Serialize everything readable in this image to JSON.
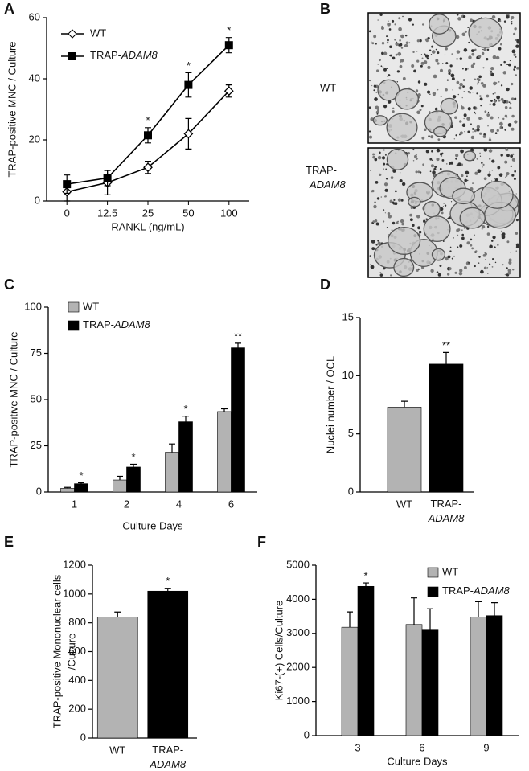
{
  "chart_data": [
    {
      "type": "line",
      "panel": "A",
      "xlabel": "RANKL (ng/mL)",
      "ylabel": "TRAP-positive MNC / Culture",
      "categories": [
        "0",
        "12.5",
        "25",
        "50",
        "100"
      ],
      "ylim": [
        0,
        60
      ],
      "yticks": [
        0,
        20,
        40,
        60
      ],
      "series": [
        {
          "name": "WT",
          "color": "#ffffff",
          "marker": "diamond",
          "values": [
            3,
            6,
            11,
            22,
            36
          ],
          "errors": [
            3,
            4,
            2,
            5,
            2
          ],
          "significance": [
            null,
            null,
            null,
            null,
            null
          ]
        },
        {
          "name": "TRAP-ADAM8",
          "color": "#000000",
          "marker": "square",
          "values": [
            5.5,
            7.5,
            21.5,
            38,
            51
          ],
          "errors": [
            3,
            2.5,
            2.5,
            4,
            2.5
          ],
          "significance": [
            null,
            null,
            "*",
            "*",
            "*"
          ]
        }
      ]
    },
    {
      "type": "bar",
      "panel": "C",
      "xlabel": "Culture Days",
      "ylabel": "TRAP-positive MNC / Culture",
      "categories": [
        "1",
        "2",
        "4",
        "6"
      ],
      "ylim": [
        0,
        100
      ],
      "yticks": [
        0,
        25,
        50,
        75,
        100
      ],
      "series": [
        {
          "name": "WT",
          "color": "#b3b3b3",
          "values": [
            2,
            6.5,
            21.5,
            43.5
          ],
          "errors": [
            0.5,
            2,
            4.5,
            1.5
          ],
          "significance": [
            null,
            null,
            null,
            null
          ]
        },
        {
          "name": "TRAP-ADAM8",
          "color": "#000000",
          "values": [
            4.5,
            13.5,
            38,
            78
          ],
          "errors": [
            0.5,
            1.5,
            3,
            2.5
          ],
          "significance": [
            "*",
            "*",
            "*",
            "**"
          ]
        }
      ]
    },
    {
      "type": "bar",
      "panel": "D",
      "ylabel": "Nuclei number / OCL",
      "categories": [
        "WT",
        "TRAP-ADAM8"
      ],
      "ylim": [
        0,
        15
      ],
      "yticks": [
        0,
        5,
        10,
        15
      ],
      "values": [
        7.3,
        11
      ],
      "errors": [
        0.5,
        1
      ],
      "colors": [
        "#b3b3b3",
        "#000000"
      ],
      "significance": [
        null,
        "**"
      ]
    },
    {
      "type": "bar",
      "panel": "E",
      "ylabel": [
        "TRAP-positive Mononuclear cells",
        "/Culture"
      ],
      "categories": [
        "WT",
        "TRAP-ADAM8"
      ],
      "ylim": [
        0,
        1200
      ],
      "yticks": [
        0,
        200,
        400,
        600,
        800,
        1000,
        1200
      ],
      "values": [
        840,
        1020
      ],
      "errors": [
        35,
        20
      ],
      "colors": [
        "#b3b3b3",
        "#000000"
      ],
      "significance": [
        null,
        "*"
      ]
    },
    {
      "type": "bar",
      "panel": "F",
      "xlabel": "Culture Days",
      "ylabel": "Ki67-(+) Cells/Culture",
      "categories": [
        "3",
        "6",
        "9"
      ],
      "ylim": [
        0,
        5000
      ],
      "yticks": [
        0,
        1000,
        2000,
        3000,
        4000,
        5000
      ],
      "series": [
        {
          "name": "WT",
          "color": "#b3b3b3",
          "values": [
            3180,
            3260,
            3480
          ],
          "errors": [
            450,
            780,
            450
          ],
          "significance": [
            null,
            null,
            null
          ]
        },
        {
          "name": "TRAP-ADAM8",
          "color": "#000000",
          "values": [
            4380,
            3120,
            3520
          ],
          "errors": [
            100,
            600,
            380
          ],
          "significance": [
            "*",
            null,
            null
          ]
        }
      ]
    }
  ],
  "panel_b": {
    "panel": "B",
    "rows": [
      "WT",
      "TRAP-ADAM8"
    ]
  }
}
